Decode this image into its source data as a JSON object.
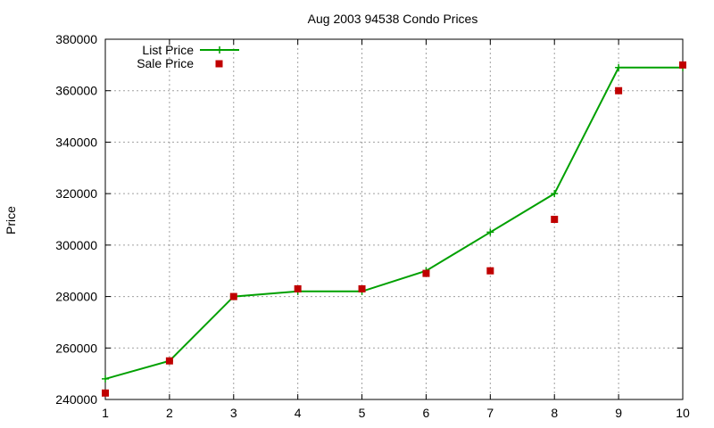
{
  "chart_data": {
    "type": "line",
    "title": "Aug 2003 94538 Condo Prices",
    "xlabel": "",
    "ylabel": "Price",
    "xlim": [
      1,
      10
    ],
    "ylim": [
      240000,
      380000
    ],
    "x_ticks": [
      1,
      2,
      3,
      4,
      5,
      6,
      7,
      8,
      9,
      10
    ],
    "y_ticks": [
      240000,
      260000,
      280000,
      300000,
      320000,
      340000,
      360000,
      380000
    ],
    "grid": true,
    "legend_position": "top-left",
    "series": [
      {
        "name": "List Price",
        "style": "line-with-plus-markers",
        "color": "#00a000",
        "x": [
          1,
          2,
          3,
          4,
          5,
          6,
          7,
          8,
          9,
          10
        ],
        "y": [
          248000,
          255000,
          280000,
          282000,
          282000,
          290000,
          305000,
          320000,
          369000,
          369000
        ]
      },
      {
        "name": "Sale Price",
        "style": "square-markers",
        "color": "#c00000",
        "x": [
          1,
          2,
          3,
          4,
          5,
          6,
          7,
          8,
          9,
          10
        ],
        "y": [
          242500,
          255000,
          280000,
          283000,
          283000,
          289000,
          290000,
          310000,
          360000,
          370000
        ]
      }
    ]
  }
}
